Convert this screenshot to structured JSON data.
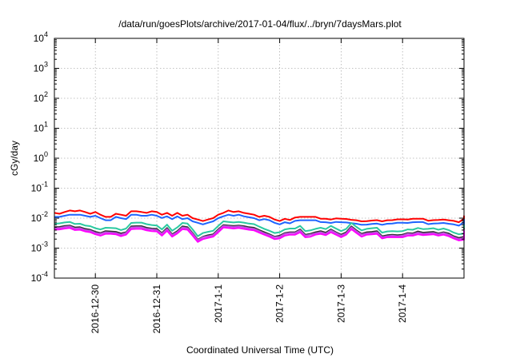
{
  "chart_data": {
    "type": "line",
    "title": "/data/run/goesPlots/archive/2017-01-04/flux/../bryn/7daysMars.plot",
    "xlabel": "Coordinated Universal Time (UTC)",
    "ylabel": "cGy/day",
    "yscale": "log",
    "ylim": [
      0.0001,
      10000
    ],
    "y_ticks": [
      {
        "base": "10",
        "exp": "-4"
      },
      {
        "base": "10",
        "exp": "-3"
      },
      {
        "base": "10",
        "exp": "-2"
      },
      {
        "base": "10",
        "exp": "-1"
      },
      {
        "base": "10",
        "exp": "0"
      },
      {
        "base": "10",
        "exp": "1"
      },
      {
        "base": "10",
        "exp": "2"
      },
      {
        "base": "10",
        "exp": "3"
      },
      {
        "base": "10",
        "exp": "4"
      }
    ],
    "xlim": [
      "2016-12-29T08:00",
      "2017-01-05T00:00"
    ],
    "x_ticks": [
      "2016-12-30",
      "2016-12-31",
      "2017-1-1",
      "2017-1-2",
      "2017-1-3",
      "2017-1-4"
    ],
    "grid": true,
    "legend": "none",
    "series": [
      {
        "color": "#ff0000",
        "start": "2016-12-29T08:00",
        "step_hours": 2,
        "values": [
          0.015,
          0.014,
          0.016,
          0.018,
          0.017,
          0.018,
          0.016,
          0.014,
          0.016,
          0.013,
          0.011,
          0.011,
          0.014,
          0.013,
          0.012,
          0.017,
          0.017,
          0.016,
          0.015,
          0.017,
          0.016,
          0.013,
          0.015,
          0.012,
          0.015,
          0.012,
          0.013,
          0.01,
          0.009,
          0.008,
          0.009,
          0.01,
          0.013,
          0.015,
          0.018,
          0.016,
          0.017,
          0.015,
          0.014,
          0.013,
          0.011,
          0.012,
          0.011,
          0.009,
          0.008,
          0.0095,
          0.0087,
          0.0105,
          0.011,
          0.011,
          0.011,
          0.011,
          0.0096,
          0.0095,
          0.009,
          0.0098,
          0.0095,
          0.0094,
          0.0088,
          0.0085,
          0.0078,
          0.0079,
          0.0083,
          0.0086,
          0.0078,
          0.0085,
          0.0086,
          0.0091,
          0.0091,
          0.009,
          0.0095,
          0.0096,
          0.0096,
          0.0082,
          0.0086,
          0.0087,
          0.009,
          0.0085,
          0.0081,
          0.0073,
          0.0096,
          0.0111,
          0.0117,
          0.0103,
          0.01,
          0.01,
          0.0093,
          0.0101,
          0.0093,
          0.0084,
          0.0093,
          0.0103,
          0.0095,
          0.0103,
          0.0112,
          0.0106,
          0.0095,
          0.0087,
          0.0093,
          0.0102,
          0.0096,
          0.0091,
          0.0087,
          0.0084,
          0.0093,
          0.0083,
          0.009,
          0.011,
          0.0103,
          0.0093,
          0.0087,
          0.0096,
          0.0087,
          0.0101,
          0.0087,
          0.0092,
          0.0096,
          0.0096,
          0.0094,
          0.0095,
          0.0084,
          0.0085,
          0.0092,
          0.0087,
          0.0088,
          0.0079,
          0.0086,
          0.0085,
          0.0096,
          0.0094,
          0.01
        ]
      },
      {
        "color": "#1e64ff",
        "start": "2016-12-29T08:00",
        "step_hours": 2,
        "values": [
          0.011,
          0.011,
          0.012,
          0.013,
          0.013,
          0.013,
          0.012,
          0.011,
          0.012,
          0.01,
          0.0085,
          0.0085,
          0.011,
          0.01,
          0.0093,
          0.013,
          0.013,
          0.012,
          0.012,
          0.013,
          0.012,
          0.0101,
          0.0115,
          0.0093,
          0.0115,
          0.0093,
          0.01,
          0.0078,
          0.007,
          0.0062,
          0.007,
          0.0078,
          0.01,
          0.0115,
          0.013,
          0.012,
          0.013,
          0.0115,
          0.0107,
          0.01,
          0.0085,
          0.0093,
          0.0085,
          0.007,
          0.0062,
          0.0073,
          0.0067,
          0.0081,
          0.0085,
          0.0085,
          0.0085,
          0.0085,
          0.0074,
          0.0073,
          0.0069,
          0.0075,
          0.0073,
          0.0072,
          0.0068,
          0.0065,
          0.006,
          0.0061,
          0.0064,
          0.0066,
          0.006,
          0.0065,
          0.0066,
          0.007,
          0.007,
          0.0069,
          0.0073,
          0.0074,
          0.0074,
          0.0063,
          0.0066,
          0.0067,
          0.0069,
          0.0065,
          0.0062,
          0.0056,
          0.0074,
          0.0085,
          0.009,
          0.0079,
          0.0077,
          0.0077,
          0.0072,
          0.0078,
          0.0072,
          0.0065,
          0.0072,
          0.0079,
          0.0073,
          0.0079,
          0.0086,
          0.0082,
          0.0073,
          0.0067,
          0.0072,
          0.0078,
          0.0074,
          0.007,
          0.0067,
          0.0065,
          0.0072,
          0.0064,
          0.0069,
          0.0085,
          0.0079,
          0.0072,
          0.0067,
          0.0074,
          0.0067,
          0.0078,
          0.0067,
          0.0071,
          0.0074,
          0.0074,
          0.0072,
          0.0073,
          0.0065,
          0.0065,
          0.0071,
          0.0067,
          0.0068,
          0.0061,
          0.0066,
          0.0065,
          0.0074,
          0.0072,
          0.0077
        ]
      },
      {
        "color": "#2ac9a0",
        "start": "2016-12-29T08:00",
        "step_hours": 2,
        "values": [
          0.0065,
          0.0067,
          0.0072,
          0.0075,
          0.0064,
          0.0065,
          0.0057,
          0.0054,
          0.0046,
          0.0042,
          0.0048,
          0.0047,
          0.0046,
          0.004,
          0.0045,
          0.0069,
          0.0071,
          0.0071,
          0.0063,
          0.0059,
          0.0057,
          0.0042,
          0.0061,
          0.0038,
          0.0049,
          0.0069,
          0.0066,
          0.0042,
          0.0025,
          0.0032,
          0.0035,
          0.0038,
          0.0055,
          0.0078,
          0.0075,
          0.0072,
          0.0075,
          0.0071,
          0.0066,
          0.0063,
          0.0052,
          0.0044,
          0.0038,
          0.0032,
          0.0034,
          0.0042,
          0.0045,
          0.0045,
          0.0055,
          0.0037,
          0.0039,
          0.0044,
          0.0048,
          0.0043,
          0.0055,
          0.0045,
          0.0037,
          0.0044,
          0.0069,
          0.0051,
          0.0039,
          0.0044,
          0.0046,
          0.0048,
          0.0033,
          0.0036,
          0.0037,
          0.0036,
          0.0037,
          0.0042,
          0.0041,
          0.0047,
          0.0043,
          0.0044,
          0.0046,
          0.0041,
          0.0045,
          0.004,
          0.0033,
          0.0029,
          0.0031,
          0.0046,
          0.0045,
          0.0053,
          0.0058,
          0.0056,
          0.0053,
          0.0046,
          0.0053,
          0.0047,
          0.0053,
          0.0051,
          0.0041,
          0.004,
          0.0044,
          0.0037,
          0.0041,
          0.0046,
          0.0037,
          0.0043,
          0.0046,
          0.0054,
          0.0051,
          0.005,
          0.0041,
          0.0039,
          0.0034,
          0.0039,
          0.0043,
          0.0049,
          0.0051,
          0.0047,
          0.0044,
          0.0048,
          0.0047,
          0.0055,
          0.0044,
          0.0037,
          0.0042,
          0.0039,
          0.0046,
          0.0042,
          0.0052,
          0.0049,
          0.0047,
          0.0042,
          0.0034,
          0.0033,
          0.0034,
          0.0041,
          0.0036,
          0.0035,
          0.0037
        ]
      },
      {
        "color": "#303030",
        "start": "2016-12-29T08:00",
        "step_hours": 2,
        "values": [
          0.005,
          0.0051,
          0.0055,
          0.0057,
          0.0049,
          0.005,
          0.0044,
          0.0041,
          0.0035,
          0.0032,
          0.0037,
          0.0036,
          0.0035,
          0.0031,
          0.0034,
          0.0053,
          0.0054,
          0.0054,
          0.0048,
          0.0045,
          0.0044,
          0.0032,
          0.0047,
          0.0029,
          0.0037,
          0.0053,
          0.005,
          0.0032,
          0.0019,
          0.0024,
          0.0027,
          0.0029,
          0.0042,
          0.0059,
          0.0057,
          0.0055,
          0.0057,
          0.0054,
          0.005,
          0.0048,
          0.004,
          0.0034,
          0.0029,
          0.0024,
          0.0026,
          0.0032,
          0.0034,
          0.0034,
          0.0042,
          0.0028,
          0.003,
          0.0034,
          0.0037,
          0.0033,
          0.0042,
          0.0034,
          0.0028,
          0.0034,
          0.0053,
          0.0039,
          0.003,
          0.0034,
          0.0035,
          0.0037,
          0.0025,
          0.0027,
          0.0028,
          0.0027,
          0.0028,
          0.0032,
          0.0031,
          0.0036,
          0.0033,
          0.0034,
          0.0035,
          0.0031,
          0.0034,
          0.0031,
          0.0025,
          0.0022,
          0.0024,
          0.0035,
          0.0034,
          0.004,
          0.0044,
          0.0043,
          0.004,
          0.0035,
          0.004,
          0.0036,
          0.004,
          0.0039,
          0.0031,
          0.0031,
          0.0034,
          0.0028,
          0.0031,
          0.0035,
          0.0028,
          0.0033,
          0.0035,
          0.0041,
          0.0039,
          0.0038,
          0.0031,
          0.003,
          0.0026,
          0.003,
          0.0033,
          0.0037,
          0.0039,
          0.0036,
          0.0034,
          0.0037,
          0.0036,
          0.0042,
          0.0034,
          0.0028,
          0.0032,
          0.003,
          0.0035,
          0.0032,
          0.004,
          0.0037,
          0.0036,
          0.0032,
          0.0026,
          0.0025,
          0.0026,
          0.0031,
          0.0027,
          0.0027,
          0.0028
        ]
      },
      {
        "color": "#c050e0",
        "start": "2016-12-29T08:00",
        "step_hours": 2,
        "values": [
          0.0046,
          0.0047,
          0.0051,
          0.0053,
          0.0045,
          0.0046,
          0.004,
          0.0038,
          0.0032,
          0.003,
          0.0034,
          0.0033,
          0.0032,
          0.0028,
          0.0032,
          0.0049,
          0.005,
          0.005,
          0.0044,
          0.0042,
          0.004,
          0.003,
          0.0043,
          0.0027,
          0.0034,
          0.0049,
          0.0046,
          0.003,
          0.0018,
          0.0023,
          0.0025,
          0.0027,
          0.0039,
          0.0055,
          0.0053,
          0.0051,
          0.0053,
          0.005,
          0.0046,
          0.0044,
          0.0037,
          0.0031,
          0.0027,
          0.0023,
          0.0024,
          0.003,
          0.0032,
          0.0032,
          0.0039,
          0.0026,
          0.0028,
          0.0031,
          0.0034,
          0.003,
          0.0039,
          0.0032,
          0.0026,
          0.0031,
          0.0049,
          0.0036,
          0.0028,
          0.0031,
          0.0032,
          0.0034,
          0.0023,
          0.0025,
          0.0026,
          0.0025,
          0.0026,
          0.003,
          0.0029,
          0.0033,
          0.003,
          0.0031,
          0.0032,
          0.0029,
          0.0032,
          0.0028,
          0.0023,
          0.002,
          0.0022,
          0.0032,
          0.0032,
          0.0037,
          0.0041,
          0.004,
          0.0037,
          0.0032,
          0.0037,
          0.0033,
          0.0037,
          0.0036,
          0.0029,
          0.0028,
          0.0031,
          0.0026,
          0.0029,
          0.0032,
          0.0026,
          0.003,
          0.0032,
          0.0038,
          0.0036,
          0.0035,
          0.0029,
          0.0028,
          0.0024,
          0.0028,
          0.003,
          0.0035,
          0.0036,
          0.0033,
          0.0031,
          0.0034,
          0.0033,
          0.0039,
          0.0031,
          0.0026,
          0.003,
          0.0028,
          0.0032,
          0.003,
          0.0037,
          0.0035,
          0.0033,
          0.003,
          0.0024,
          0.0023,
          0.0024,
          0.0029,
          0.0025,
          0.0025,
          0.0026
        ]
      },
      {
        "color": "#ff00ff",
        "start": "2016-12-29T08:00",
        "step_hours": 2,
        "values": [
          0.0041,
          0.0042,
          0.0045,
          0.0047,
          0.004,
          0.0041,
          0.0036,
          0.0034,
          0.0029,
          0.0026,
          0.003,
          0.003,
          0.0029,
          0.0025,
          0.0028,
          0.0043,
          0.0044,
          0.0044,
          0.0039,
          0.0037,
          0.0036,
          0.0026,
          0.0038,
          0.0024,
          0.0031,
          0.0043,
          0.0041,
          0.0026,
          0.0016,
          0.002,
          0.0022,
          0.0024,
          0.0034,
          0.0049,
          0.0047,
          0.0045,
          0.0047,
          0.0044,
          0.0041,
          0.0039,
          0.0033,
          0.0028,
          0.0024,
          0.002,
          0.0021,
          0.0026,
          0.0028,
          0.0028,
          0.0034,
          0.0023,
          0.0024,
          0.0028,
          0.003,
          0.0027,
          0.0034,
          0.0028,
          0.0023,
          0.0028,
          0.0043,
          0.0032,
          0.0024,
          0.0028,
          0.0029,
          0.003,
          0.0021,
          0.0023,
          0.0023,
          0.0023,
          0.0023,
          0.0026,
          0.0026,
          0.0029,
          0.0027,
          0.0028,
          0.0029,
          0.0026,
          0.0028,
          0.0025,
          0.0021,
          0.0018,
          0.0019,
          0.0029,
          0.0028,
          0.0033,
          0.0036,
          0.0035,
          0.0033,
          0.0029,
          0.0033,
          0.0029,
          0.0033,
          0.0032,
          0.0026,
          0.0025,
          0.0028,
          0.0023,
          0.0026,
          0.0029,
          0.0023,
          0.0027,
          0.0029,
          0.0034,
          0.0032,
          0.0031,
          0.0026,
          0.0024,
          0.0021,
          0.0024,
          0.0027,
          0.0031,
          0.0032,
          0.0029,
          0.0028,
          0.003,
          0.0029,
          0.0034,
          0.0028,
          0.0023,
          0.0026,
          0.0024,
          0.0029,
          0.0026,
          0.0033,
          0.0031,
          0.0029,
          0.0026,
          0.0021,
          0.0021,
          0.0021,
          0.0026,
          0.0023,
          0.0022,
          0.0023
        ]
      }
    ]
  }
}
